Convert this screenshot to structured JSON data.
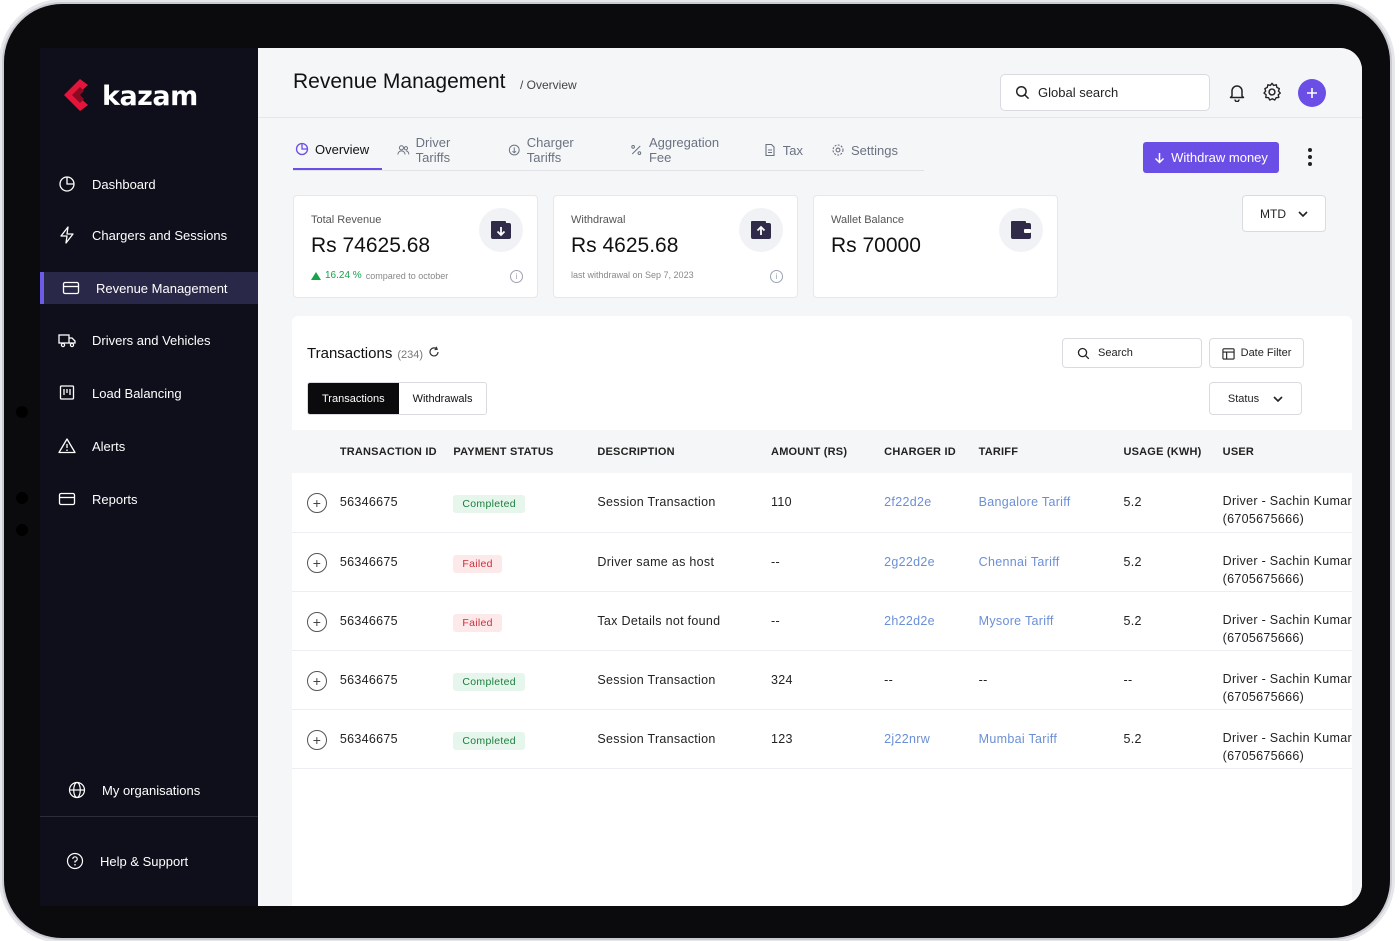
{
  "brand": {
    "name": "kazam",
    "accent": "#6b4ee6",
    "logo_color": "#e5143a"
  },
  "sidebar": {
    "items": [
      {
        "label": "Dashboard",
        "icon": "pie-chart-icon"
      },
      {
        "label": "Chargers and Sessions",
        "icon": "bolt-icon"
      },
      {
        "label": "Revenue Management",
        "icon": "card-icon",
        "active": true
      },
      {
        "label": "Drivers and Vehicles",
        "icon": "truck-icon"
      },
      {
        "label": "Load Balancing",
        "icon": "load-balance-icon"
      },
      {
        "label": "Alerts",
        "icon": "warning-icon"
      },
      {
        "label": "Reports",
        "icon": "card-icon"
      }
    ],
    "organisations_label": "My organisations",
    "help_label": "Help & Support"
  },
  "header": {
    "title": "Revenue Management",
    "breadcrumb": "/ Overview",
    "search_placeholder": "Global search"
  },
  "tabs": [
    {
      "label": "Overview",
      "icon": "pie-chart-icon",
      "active": true
    },
    {
      "label": "Driver Tariffs",
      "icon": "users-icon"
    },
    {
      "label": "Charger Tariffs",
      "icon": "coin-icon"
    },
    {
      "label": "Aggregation Fee",
      "icon": "percent-icon"
    },
    {
      "label": "Tax",
      "icon": "document-icon"
    },
    {
      "label": "Settings",
      "icon": "gear-icon"
    }
  ],
  "actions": {
    "withdraw_label": "Withdraw money",
    "period": "MTD"
  },
  "cards": {
    "total_revenue": {
      "label": "Total Revenue",
      "value": "Rs 74625.68",
      "pct": "16.24 %",
      "compare": "compared to october"
    },
    "withdrawal": {
      "label": "Withdrawal",
      "value": "Rs 4625.68",
      "note": "last withdrawal on Sep 7, 2023"
    },
    "wallet": {
      "label": "Wallet Balance",
      "value": "Rs 70000"
    }
  },
  "transactions": {
    "title": "Transactions",
    "count": "(234)",
    "segments": [
      "Transactions",
      "Withdrawals"
    ],
    "search_label": "Search",
    "date_filter_label": "Date Filter",
    "status_label": "Status",
    "columns": [
      "TRANSACTION ID",
      "PAYMENT STATUS",
      "DESCRIPTION",
      "AMOUNT (RS)",
      "CHARGER ID",
      "TARIFF",
      "USAGE (KWH)",
      "USER"
    ],
    "rows": [
      {
        "id": "56346675",
        "status": "Completed",
        "description": "Session Transaction",
        "amount": "110",
        "charger": "2f22d2e",
        "tariff": "Bangalore Tariff",
        "usage": "5.2",
        "user": "Driver - Sachin Kumar",
        "phone": "(6705675666)"
      },
      {
        "id": "56346675",
        "status": "Failed",
        "description": "Driver same as host",
        "amount": "--",
        "charger": "2g22d2e",
        "tariff": "Chennai Tariff",
        "usage": "5.2",
        "user": "Driver - Sachin Kumar",
        "phone": "(6705675666)"
      },
      {
        "id": "56346675",
        "status": "Failed",
        "description": "Tax Details not found",
        "amount": "--",
        "charger": "2h22d2e",
        "tariff": "Mysore Tariff",
        "usage": "5.2",
        "user": "Driver - Sachin Kumar",
        "phone": "(6705675666)"
      },
      {
        "id": "56346675",
        "status": "Completed",
        "description": "Session Transaction",
        "amount": "324",
        "charger": "--",
        "tariff": "--",
        "usage": "--",
        "user": "Driver - Sachin Kumar",
        "phone": "(6705675666)"
      },
      {
        "id": "56346675",
        "status": "Completed",
        "description": "Session Transaction",
        "amount": "123",
        "charger": "2j22nrw",
        "tariff": "Mumbai Tariff",
        "usage": "5.2",
        "user": "Driver - Sachin Kumar",
        "phone": "(6705675666)"
      }
    ]
  }
}
